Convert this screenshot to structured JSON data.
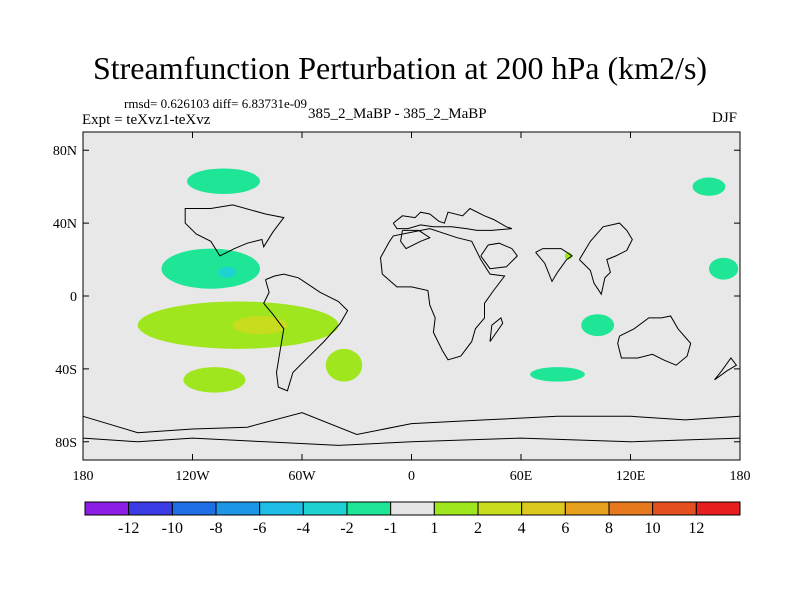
{
  "title": "Streamfunction Perturbation at 200 hPa (km2/s)",
  "stats_text": "rmsd= 0.626103 diff= 6.83731e-09",
  "left_subtitle": "Expt = teXvz1-teXvz",
  "center_subtitle": "385_2_MaBP - 385_2_MaBP",
  "right_subtitle": "DJF",
  "colors": {
    "plot_background": "#e8e8e8",
    "coastline": "#000000"
  },
  "chart_data": {
    "type": "heatmap",
    "title": "Streamfunction Perturbation at 200 hPa (km2/s)",
    "units": "km2/s",
    "level": "200 hPa",
    "season": "DJF",
    "x_range": [
      -180,
      180
    ],
    "y_range": [
      -90,
      90
    ],
    "x_ticks": [
      {
        "value": -180,
        "label": "180"
      },
      {
        "value": -120,
        "label": "120W"
      },
      {
        "value": -60,
        "label": "60W"
      },
      {
        "value": 0,
        "label": "0"
      },
      {
        "value": 60,
        "label": "60E"
      },
      {
        "value": 120,
        "label": "120E"
      },
      {
        "value": 180,
        "label": "180"
      }
    ],
    "y_ticks": [
      {
        "value": 80,
        "label": "80N"
      },
      {
        "value": 40,
        "label": "40N"
      },
      {
        "value": 0,
        "label": "0"
      },
      {
        "value": -40,
        "label": "40S"
      },
      {
        "value": -80,
        "label": "80S"
      }
    ],
    "colorbar": {
      "colors": [
        "#8c1ee6",
        "#3c3ce6",
        "#1e6ee6",
        "#1e96e6",
        "#1ebee6",
        "#1ed2d2",
        "#1ee696",
        "#e6e6e6",
        "#a0e61e",
        "#c8dc1e",
        "#dcc81e",
        "#e6a01e",
        "#e6781e",
        "#e6501e",
        "#e61e1e"
      ],
      "labels": [
        "-12",
        "-10",
        "-8",
        "-6",
        "-4",
        "-2",
        "-1",
        "1",
        "2",
        "4",
        "6",
        "8",
        "10",
        "12"
      ]
    },
    "features": [
      {
        "name": "low north pacific",
        "lon": -103,
        "lat": 63,
        "rx": 20,
        "ry": 7,
        "value": -1.5
      },
      {
        "name": "low subtropical pacific",
        "lon": -110,
        "lat": 15,
        "rx": 27,
        "ry": 11,
        "value": -1.8
      },
      {
        "name": "low pacific core",
        "lon": -101,
        "lat": 13,
        "rx": 5,
        "ry": 3,
        "value": -3
      },
      {
        "name": "high south pacific band",
        "lon": -95,
        "lat": -16,
        "rx": 55,
        "ry": 13,
        "value": 1.6
      },
      {
        "name": "high south pacific core",
        "lon": -83,
        "lat": -16,
        "rx": 15,
        "ry": 5,
        "value": 3
      },
      {
        "name": "high south atlantic tail",
        "lon": -37,
        "lat": -38,
        "rx": 10,
        "ry": 9,
        "value": 1.5
      },
      {
        "name": "high southern ocean",
        "lon": -108,
        "lat": -46,
        "rx": 17,
        "ry": 7,
        "value": 1.5
      },
      {
        "name": "low madagascar",
        "lon": 102,
        "lat": -16,
        "rx": 9,
        "ry": 6,
        "value": -1.5
      },
      {
        "name": "low indian ocean",
        "lon": 80,
        "lat": -43,
        "rx": 15,
        "ry": 4,
        "value": -1.5
      },
      {
        "name": "high south asia dot",
        "lon": 86,
        "lat": 22,
        "rx": 2,
        "ry": 2,
        "value": 1.2
      },
      {
        "name": "low north pacific east",
        "lon": 163,
        "lat": 60,
        "rx": 9,
        "ry": 5,
        "value": -1.5
      },
      {
        "name": "low west pacific",
        "lon": 171,
        "lat": 15,
        "rx": 8,
        "ry": 6,
        "value": -1.5
      }
    ]
  }
}
